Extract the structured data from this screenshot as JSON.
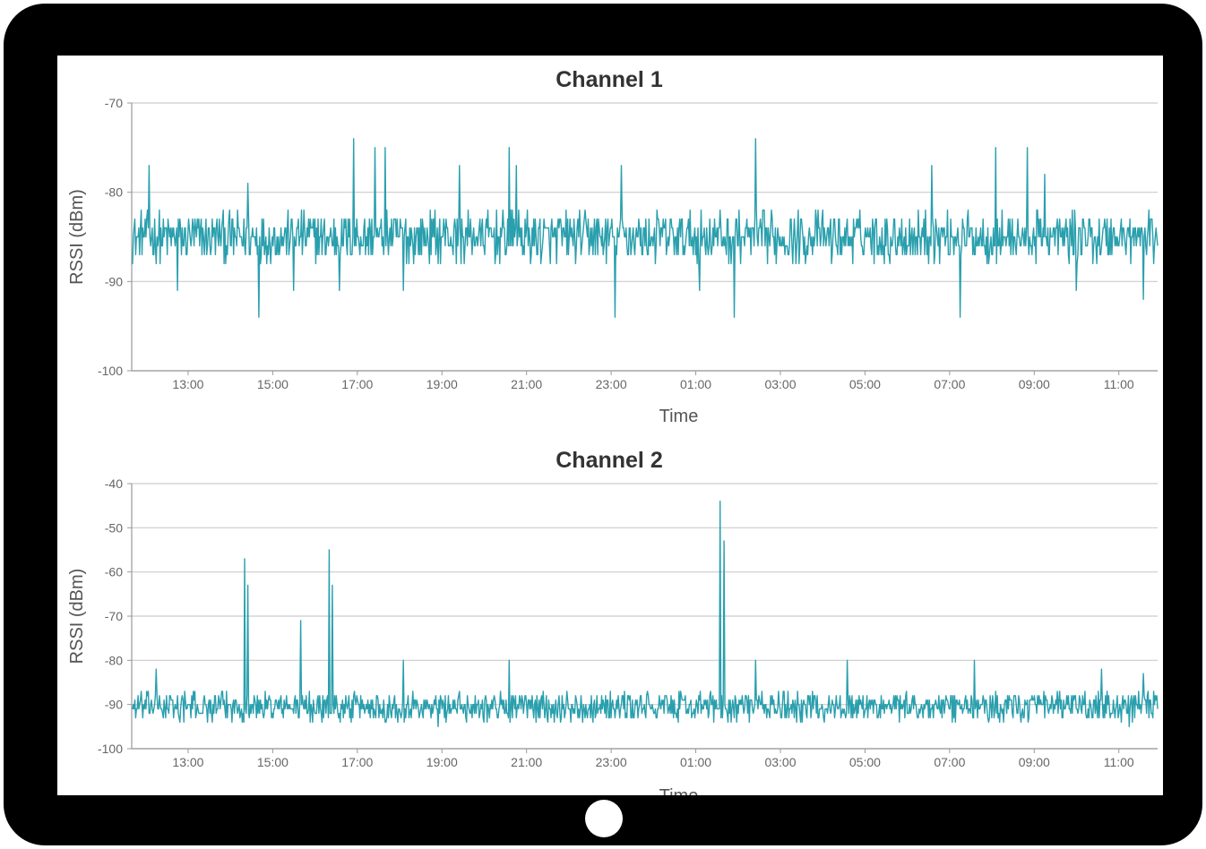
{
  "colors": {
    "frame": "#000000",
    "screen": "#ffffff",
    "series": "#2a9fad",
    "grid": "#cccccc",
    "title": "#333333"
  },
  "chart_data": [
    {
      "type": "line",
      "title": "Channel 1",
      "xlabel": "Time",
      "ylabel": "RSSI (dBm)",
      "ylim": [
        -100,
        -70
      ],
      "yticks": [
        "-70",
        "-80",
        "-90",
        "-100"
      ],
      "xticks": [
        "13:00",
        "15:00",
        "17:00",
        "19:00",
        "21:00",
        "23:00",
        "01:00",
        "03:00",
        "05:00",
        "07:00",
        "09:00",
        "11:00"
      ],
      "grid": true,
      "series": [
        {
          "color": "#2a9fad",
          "baseline": -85,
          "noise_range": [
            -88,
            -82
          ],
          "spikes": [
            {
              "x": "12:05",
              "y": -77
            },
            {
              "x": "14:25",
              "y": -79
            },
            {
              "x": "16:55",
              "y": -74
            },
            {
              "x": "17:25",
              "y": -75
            },
            {
              "x": "17:40",
              "y": -75
            },
            {
              "x": "19:25",
              "y": -77
            },
            {
              "x": "20:35",
              "y": -75
            },
            {
              "x": "20:45",
              "y": -77
            },
            {
              "x": "23:15",
              "y": -77
            },
            {
              "x": "01:55",
              "y": -74
            },
            {
              "x": "02:25",
              "y": -74
            },
            {
              "x": "06:35",
              "y": -77
            },
            {
              "x": "08:05",
              "y": -75
            },
            {
              "x": "08:50",
              "y": -75
            },
            {
              "x": "09:15",
              "y": -78
            },
            {
              "x": "12:45",
              "y": -91
            },
            {
              "x": "14:40",
              "y": -94
            },
            {
              "x": "15:30",
              "y": -91
            },
            {
              "x": "16:35",
              "y": -91
            },
            {
              "x": "18:05",
              "y": -91
            },
            {
              "x": "23:05",
              "y": -94
            },
            {
              "x": "01:05",
              "y": -91
            },
            {
              "x": "01:55",
              "y": -94
            },
            {
              "x": "07:15",
              "y": -94
            },
            {
              "x": "10:00",
              "y": -91
            },
            {
              "x": "11:35",
              "y": -92
            }
          ]
        }
      ]
    },
    {
      "type": "line",
      "title": "Channel 2",
      "xlabel": "Time",
      "ylabel": "RSSI (dBm)",
      "ylim": [
        -100,
        -40
      ],
      "yticks": [
        "-40",
        "-50",
        "-60",
        "-70",
        "-80",
        "-90",
        "-100"
      ],
      "xticks": [
        "13:00",
        "15:00",
        "17:00",
        "19:00",
        "21:00",
        "23:00",
        "01:00",
        "03:00",
        "05:00",
        "07:00",
        "09:00",
        "11:00"
      ],
      "grid": true,
      "series": [
        {
          "color": "#2a9fad",
          "baseline": -91,
          "noise_range": [
            -94,
            -87
          ],
          "spikes": [
            {
              "x": "12:15",
              "y": -82
            },
            {
              "x": "14:20",
              "y": -57
            },
            {
              "x": "14:25",
              "y": -63
            },
            {
              "x": "15:40",
              "y": -71
            },
            {
              "x": "16:20",
              "y": -55
            },
            {
              "x": "16:25",
              "y": -63
            },
            {
              "x": "18:05",
              "y": -80
            },
            {
              "x": "20:35",
              "y": -80
            },
            {
              "x": "01:35",
              "y": -44
            },
            {
              "x": "01:40",
              "y": -53
            },
            {
              "x": "02:25",
              "y": -80
            },
            {
              "x": "04:35",
              "y": -80
            },
            {
              "x": "07:35",
              "y": -80
            },
            {
              "x": "10:35",
              "y": -82
            },
            {
              "x": "11:35",
              "y": -83
            },
            {
              "x": "18:55",
              "y": -95
            },
            {
              "x": "11:15",
              "y": -95
            }
          ]
        }
      ]
    }
  ]
}
